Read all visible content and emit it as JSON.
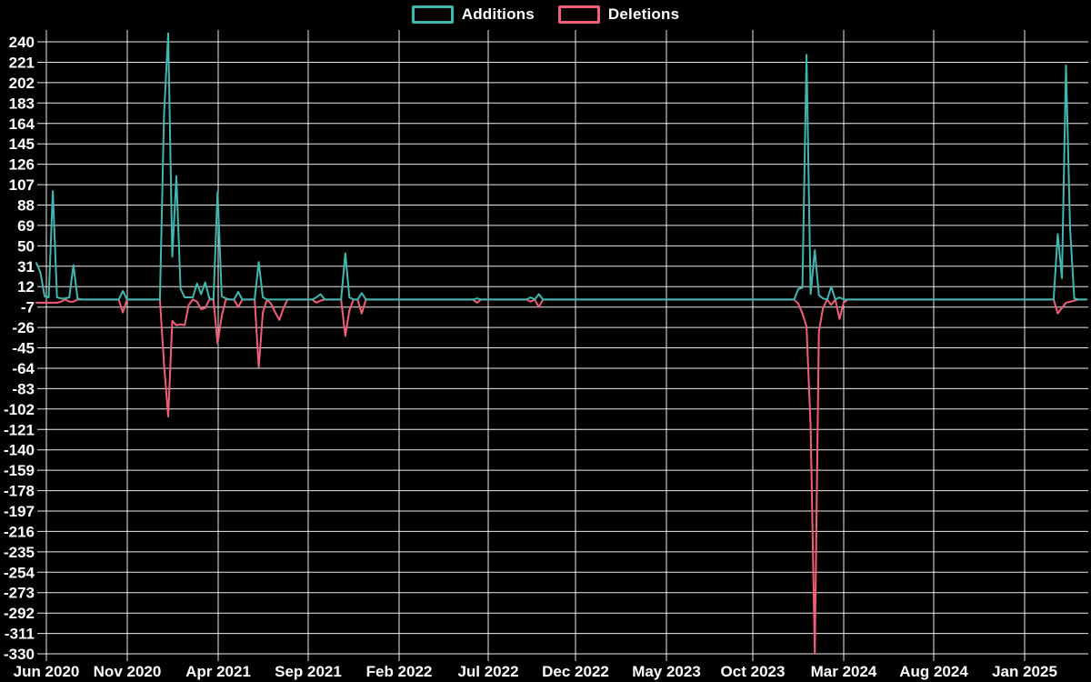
{
  "legend": {
    "additions": "Additions",
    "deletions": "Deletions"
  },
  "colors": {
    "additions": "#3eb8b1",
    "deletions": "#f25e78",
    "grid": "#ffffff",
    "text": "#ffffff",
    "background": "#000000"
  },
  "chart_data": {
    "type": "line",
    "title": "",
    "legend_position": "top-center",
    "grid": true,
    "x_unit": "week",
    "x_tick_labels": [
      "Jun 2020",
      "Nov 2020",
      "Apr 2021",
      "Sep 2021",
      "Feb 2022",
      "Jul 2022",
      "Dec 2022",
      "May 2023",
      "Oct 2023",
      "Mar 2024",
      "Aug 2024",
      "Jan 2025"
    ],
    "y_ticks": [
      240,
      221,
      202,
      183,
      164,
      145,
      126,
      107,
      88,
      69,
      50,
      31,
      12,
      -7,
      -26,
      -45,
      -64,
      -83,
      -102,
      -121,
      -140,
      -159,
      -178,
      -197,
      -216,
      -235,
      -254,
      -273,
      -292,
      -311,
      -330
    ],
    "y_range": [
      -332,
      251
    ],
    "baseline": 0,
    "default_value": 0,
    "weeks_total": 256,
    "series": [
      {
        "name": "Additions",
        "color_key": "additions",
        "values_sparse": {
          "0": 34,
          "1": 25,
          "2": 3,
          "3": 2,
          "4": 101,
          "5": 2,
          "6": 1,
          "7": 1,
          "8": 2,
          "9": 32,
          "10": 1,
          "21": 8,
          "31": 172,
          "32": 248,
          "33": 40,
          "34": 115,
          "35": 10,
          "36": 2,
          "37": 2,
          "38": 2,
          "39": 15,
          "40": 5,
          "41": 16,
          "42": 1,
          "44": 100,
          "45": 3,
          "46": 1,
          "49": 7,
          "54": 35,
          "55": 2,
          "68": 2,
          "69": 5,
          "75": 43,
          "76": 2,
          "79": 6,
          "107": 1,
          "120": 2,
          "122": 5,
          "185": 10,
          "186": 11,
          "187": 228,
          "188": 5,
          "189": 46,
          "190": 4,
          "191": 1,
          "193": 12,
          "195": 2,
          "248": 61,
          "249": 20,
          "250": 218,
          "251": 66,
          "252": 1
        }
      },
      {
        "name": "Deletions",
        "color_key": "deletions",
        "values_sparse": {
          "0": -3,
          "1": -3,
          "2": -3,
          "3": -3,
          "4": -3,
          "5": -3,
          "6": -2,
          "8": -2,
          "9": -2,
          "21": -12,
          "31": -60,
          "32": -109,
          "33": -20,
          "34": -24,
          "35": -23,
          "36": -24,
          "37": -5,
          "39": -2,
          "40": -9,
          "41": -8,
          "44": -41,
          "45": -15,
          "49": -7,
          "54": -63,
          "55": -12,
          "57": -4,
          "58": -12,
          "59": -19,
          "60": -8,
          "68": -3,
          "69": -1,
          "75": -34,
          "76": -10,
          "79": -13,
          "107": -3,
          "120": -2,
          "122": -7,
          "185": -4,
          "186": -13,
          "187": -25,
          "188": -118,
          "189": -330,
          "190": -30,
          "191": -8,
          "193": -5,
          "195": -18,
          "196": -3,
          "248": -13,
          "249": -8,
          "250": -3,
          "251": -2,
          "252": -1
        }
      }
    ]
  }
}
